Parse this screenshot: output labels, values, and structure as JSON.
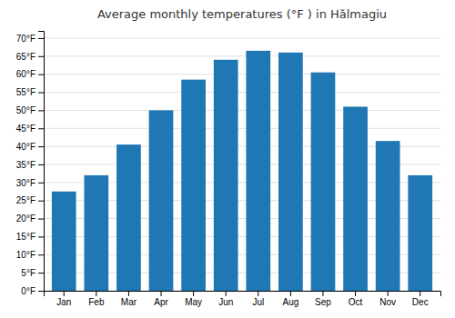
{
  "chart_data": {
    "type": "bar",
    "title": "Average monthly temperatures (°F ) in Hălmagiu",
    "categories": [
      "Jan",
      "Feb",
      "Mar",
      "Apr",
      "May",
      "Jun",
      "Jul",
      "Aug",
      "Sep",
      "Oct",
      "Nov",
      "Dec"
    ],
    "values": [
      27.5,
      32.0,
      40.5,
      50.0,
      58.5,
      64.0,
      66.5,
      66.0,
      60.5,
      51.0,
      41.5,
      32.0
    ],
    "ylim": [
      0,
      72
    ],
    "yticks": [
      {
        "value": 0,
        "label": "0°F"
      },
      {
        "value": 5,
        "label": "5°F"
      },
      {
        "value": 10,
        "label": "10°F"
      },
      {
        "value": 15,
        "label": "15°F"
      },
      {
        "value": 20,
        "label": "20°F"
      },
      {
        "value": 25,
        "label": "25°F"
      },
      {
        "value": 30,
        "label": "30°F"
      },
      {
        "value": 35,
        "label": "35°F"
      },
      {
        "value": 40,
        "label": "40°F"
      },
      {
        "value": 45,
        "label": "45°F"
      },
      {
        "value": 50,
        "label": "50°F"
      },
      {
        "value": 55,
        "label": "55°F"
      },
      {
        "value": 60,
        "label": "60°F"
      },
      {
        "value": 65,
        "label": "65°F"
      },
      {
        "value": 70,
        "label": "70°F"
      }
    ],
    "grid": true
  }
}
